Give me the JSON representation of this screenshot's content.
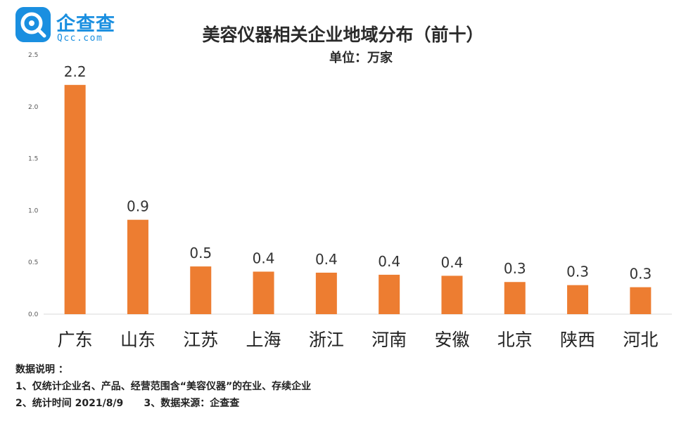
{
  "brand": {
    "name": "企查查",
    "sub": "Qcc.com",
    "color": "#1a8fe0"
  },
  "chart_data": {
    "type": "bar",
    "title": "美容仪器相关企业地域分布（前十）",
    "subtitle": "单位：万家",
    "categories": [
      "广东",
      "山东",
      "江苏",
      "上海",
      "浙江",
      "河南",
      "安徽",
      "北京",
      "陕西",
      "河北"
    ],
    "values": [
      2.2,
      0.9,
      0.5,
      0.4,
      0.4,
      0.4,
      0.4,
      0.3,
      0.3,
      0.3
    ],
    "bar_values": [
      2.21,
      0.91,
      0.46,
      0.41,
      0.4,
      0.38,
      0.37,
      0.31,
      0.28,
      0.26
    ],
    "yticks": [
      "0.0",
      "0.5",
      "1.0",
      "1.5",
      "2.0",
      "2.5"
    ],
    "ylim": [
      0,
      2.5
    ],
    "bar_color": "#ed7d31",
    "grid": false,
    "legend": "none"
  },
  "notes": {
    "heading": "数据说明 ：",
    "line1": "1、仅统计企业名、产品、经营范围含“美容仪器”的在业、存续企业",
    "line2": "2、统计时间 2021/8/9      3、数据来源：企查查"
  }
}
